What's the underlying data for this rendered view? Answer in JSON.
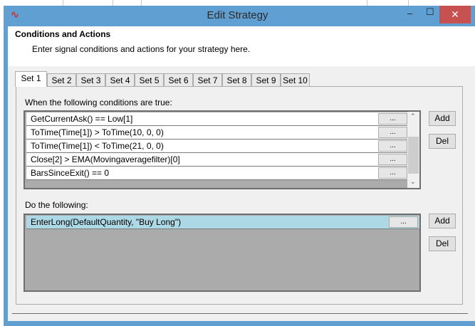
{
  "window": {
    "title": "Edit Strategy",
    "minimize": "‒",
    "maximize": "☐",
    "close": "✕"
  },
  "header": {
    "title": "Conditions and Actions",
    "subtitle": "Enter signal conditions and actions for your strategy here."
  },
  "tabs": [
    "Set 1",
    "Set 2",
    "Set 3",
    "Set 4",
    "Set 5",
    "Set 6",
    "Set 7",
    "Set 8",
    "Set 9",
    "Set 10"
  ],
  "selected_tab": "Set 1",
  "conditions": {
    "label": "When the following conditions are true:",
    "items": [
      "GetCurrentAsk() == Low[1]",
      "ToTime(Time[1]) > ToTime(10, 0, 0)",
      "ToTime(Time[1]) < ToTime(21, 0, 0)",
      "Close[2] > EMA(Movingaveragefilter)[0]",
      "BarsSinceExit() == 0"
    ],
    "add": "Add",
    "del": "Del"
  },
  "actions": {
    "label": "Do the following:",
    "items": [
      "EnterLong(DefaultQuantity, \"Buy Long\")"
    ],
    "add": "Add",
    "del": "Del",
    "selected_color": "#add8e6"
  },
  "edit_button": "...",
  "colors": {
    "titlebar": "#5f9fd2",
    "close": "#c75050"
  }
}
